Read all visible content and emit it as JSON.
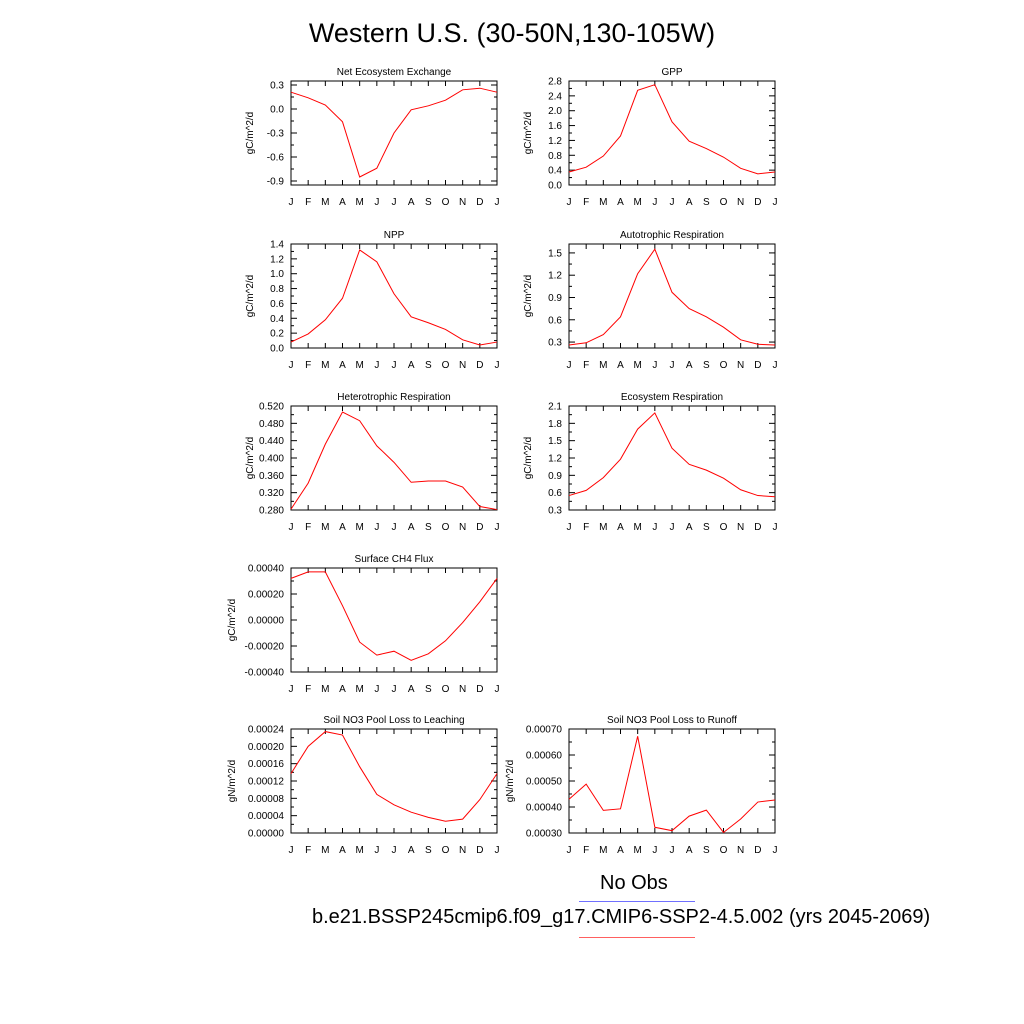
{
  "title": "Western U.S. (30-50N,130-105W)",
  "legend": {
    "obs_label": "No Obs",
    "obs_color": "#7070ff",
    "case_label": "b.e21.BSSP245cmip6.f09_g17.CMIP6-SSP2-4.5.002 (yrs 2045-2069)",
    "case_color": "#ff0000"
  },
  "chart_data": [
    {
      "type": "line",
      "title": "Net Ecosystem Exchange",
      "ylabel": "gC/m^2/d",
      "categories": [
        "J",
        "F",
        "M",
        "A",
        "M",
        "J",
        "J",
        "A",
        "S",
        "O",
        "N",
        "D",
        "J"
      ],
      "yticks": [
        "0.3",
        "0.0",
        "-0.3",
        "-0.6",
        "-0.9"
      ],
      "ylim": [
        -0.95,
        0.35
      ],
      "series": [
        {
          "values": [
            0.21,
            0.14,
            0.05,
            -0.16,
            -0.85,
            -0.74,
            -0.3,
            -0.01,
            0.04,
            0.11,
            0.24,
            0.26,
            0.21
          ]
        }
      ]
    },
    {
      "type": "line",
      "title": "GPP",
      "ylabel": "gC/m^2/d",
      "categories": [
        "J",
        "F",
        "M",
        "A",
        "M",
        "J",
        "J",
        "A",
        "S",
        "O",
        "N",
        "D",
        "J"
      ],
      "yticks": [
        "2.8",
        "2.4",
        "2.0",
        "1.6",
        "1.2",
        "0.8",
        "0.4",
        "0.0"
      ],
      "ylim": [
        0.0,
        2.8
      ],
      "series": [
        {
          "values": [
            0.35,
            0.48,
            0.78,
            1.32,
            2.55,
            2.7,
            1.7,
            1.18,
            0.98,
            0.75,
            0.45,
            0.3,
            0.35
          ]
        }
      ]
    },
    {
      "type": "line",
      "title": "NPP",
      "ylabel": "gC/m^2/d",
      "categories": [
        "J",
        "F",
        "M",
        "A",
        "M",
        "J",
        "J",
        "A",
        "S",
        "O",
        "N",
        "D",
        "J"
      ],
      "yticks": [
        "1.4",
        "1.2",
        "1.0",
        "0.8",
        "0.6",
        "0.4",
        "0.2",
        "0.0"
      ],
      "ylim": [
        0.0,
        1.4
      ],
      "series": [
        {
          "values": [
            0.08,
            0.19,
            0.38,
            0.67,
            1.32,
            1.16,
            0.73,
            0.42,
            0.34,
            0.25,
            0.11,
            0.04,
            0.08
          ]
        }
      ]
    },
    {
      "type": "line",
      "title": "Autotrophic Respiration",
      "ylabel": "gC/m^2/d",
      "categories": [
        "J",
        "F",
        "M",
        "A",
        "M",
        "J",
        "J",
        "A",
        "S",
        "O",
        "N",
        "D",
        "J"
      ],
      "yticks": [
        "1.5",
        "1.2",
        "0.9",
        "0.6",
        "0.3"
      ],
      "ylim": [
        0.22,
        1.62
      ],
      "series": [
        {
          "values": [
            0.26,
            0.29,
            0.4,
            0.64,
            1.22,
            1.55,
            0.97,
            0.75,
            0.64,
            0.5,
            0.33,
            0.27,
            0.26
          ]
        }
      ]
    },
    {
      "type": "line",
      "title": "Heterotrophic Respiration",
      "ylabel": "gC/m^2/d",
      "categories": [
        "J",
        "F",
        "M",
        "A",
        "M",
        "J",
        "J",
        "A",
        "S",
        "O",
        "N",
        "D",
        "J"
      ],
      "yticks": [
        "0.520",
        "0.480",
        "0.440",
        "0.400",
        "0.360",
        "0.320",
        "0.280"
      ],
      "ylim": [
        0.28,
        0.52
      ],
      "series": [
        {
          "values": [
            0.282,
            0.342,
            0.432,
            0.506,
            0.486,
            0.428,
            0.39,
            0.344,
            0.347,
            0.347,
            0.333,
            0.288,
            0.281
          ]
        }
      ]
    },
    {
      "type": "line",
      "title": "Ecosystem Respiration",
      "ylabel": "gC/m^2/d",
      "categories": [
        "J",
        "F",
        "M",
        "A",
        "M",
        "J",
        "J",
        "A",
        "S",
        "O",
        "N",
        "D",
        "J"
      ],
      "yticks": [
        "2.1",
        "1.8",
        "1.5",
        "1.2",
        "0.9",
        "0.6",
        "0.3"
      ],
      "ylim": [
        0.3,
        2.1
      ],
      "series": [
        {
          "values": [
            0.55,
            0.64,
            0.86,
            1.18,
            1.7,
            1.98,
            1.37,
            1.09,
            0.99,
            0.85,
            0.65,
            0.55,
            0.53
          ]
        }
      ]
    },
    {
      "type": "line",
      "title": "Surface CH4 Flux",
      "ylabel": "gC/m^2/d",
      "categories": [
        "J",
        "F",
        "M",
        "A",
        "M",
        "J",
        "J",
        "A",
        "S",
        "O",
        "N",
        "D",
        "J"
      ],
      "yticks": [
        "0.00040",
        "0.00020",
        "0.00000",
        "-0.00020",
        "-0.00040"
      ],
      "ylim": [
        -0.0004,
        0.0004
      ],
      "series": [
        {
          "values": [
            0.00032,
            0.00037,
            0.00037,
            0.00011,
            -0.00017,
            -0.00027,
            -0.00024,
            -0.00031,
            -0.00026,
            -0.00016,
            -2e-05,
            0.00014,
            0.00032
          ]
        }
      ]
    },
    {
      "type": "line",
      "title": "Soil NO3 Pool Loss to Leaching",
      "ylabel": "gN/m^2/d",
      "categories": [
        "J",
        "F",
        "M",
        "A",
        "M",
        "J",
        "J",
        "A",
        "S",
        "O",
        "N",
        "D",
        "J"
      ],
      "yticks": [
        "0.00024",
        "0.00020",
        "0.00016",
        "0.00012",
        "0.00008",
        "0.00004",
        "0.00000"
      ],
      "ylim": [
        0.0,
        0.00024
      ],
      "series": [
        {
          "values": [
            0.000137,
            0.0002,
            0.000234,
            0.000226,
            0.000153,
            8.9e-05,
            6.5e-05,
            4.8e-05,
            3.6e-05,
            2.7e-05,
            3.2e-05,
            7.7e-05,
            0.000137
          ]
        }
      ]
    },
    {
      "type": "line",
      "title": "Soil NO3 Pool Loss to Runoff",
      "ylabel": "gN/m^2/d",
      "categories": [
        "J",
        "F",
        "M",
        "A",
        "M",
        "J",
        "J",
        "A",
        "S",
        "O",
        "N",
        "D",
        "J"
      ],
      "yticks": [
        "0.00070",
        "0.00060",
        "0.00050",
        "0.00040",
        "0.00030"
      ],
      "ylim": [
        0.0003,
        0.0007
      ],
      "series": [
        {
          "values": [
            0.00043,
            0.000488,
            0.000387,
            0.000393,
            0.000672,
            0.000322,
            0.000309,
            0.000365,
            0.000388,
            0.000302,
            0.000354,
            0.000419,
            0.000427
          ]
        }
      ]
    }
  ]
}
